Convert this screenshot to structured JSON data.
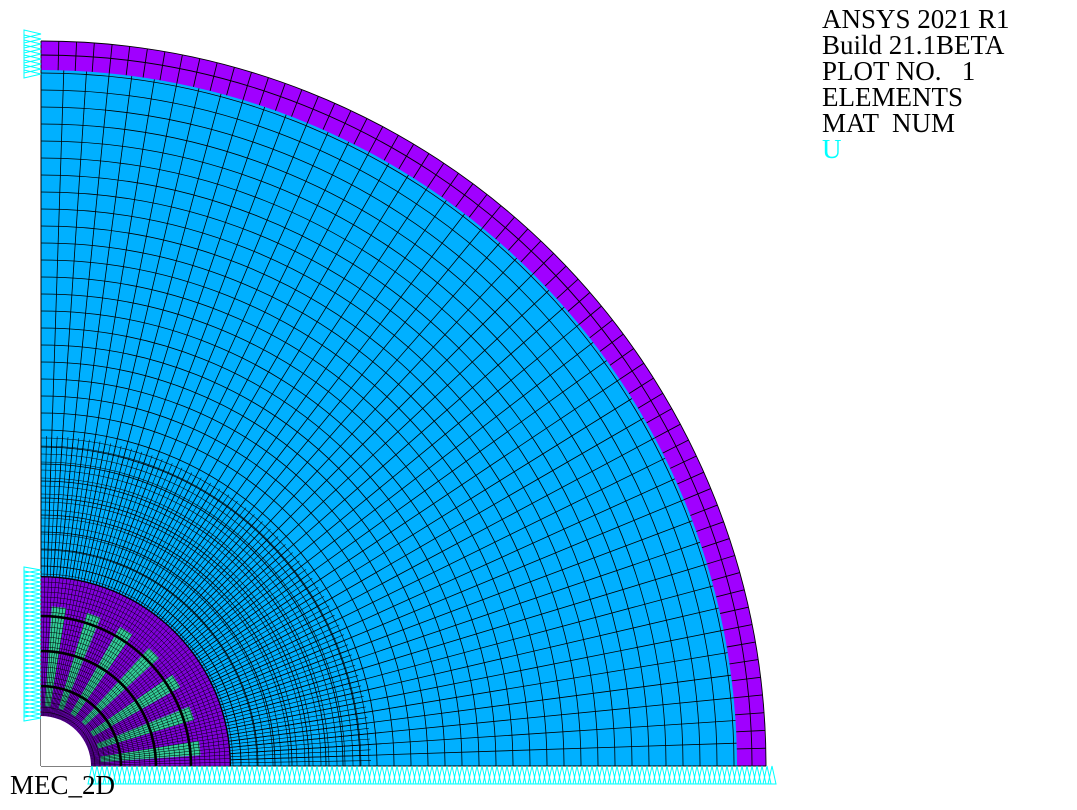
{
  "header_info": {
    "product": "ANSYS 2021 R1",
    "build": "Build 21.1BETA",
    "plot_no": "PLOT NO.   1",
    "plot_type": "ELEMENTS",
    "color_by": "MAT  NUM",
    "bc_legend": "U"
  },
  "model_name": "MEC_2D",
  "colors": {
    "background": "#ffffff",
    "outer_ring": "#a000ff",
    "core_region": "#00b0ff",
    "inner_magnet_region": "#7f00d9",
    "slot_region": "#33cc99",
    "constraint_symbols": "#00ffff",
    "mesh_lines": "#000000",
    "legend_u": "#00ffff"
  },
  "icons": {
    "constraint_symbol": "triangle-constraint-icon"
  }
}
